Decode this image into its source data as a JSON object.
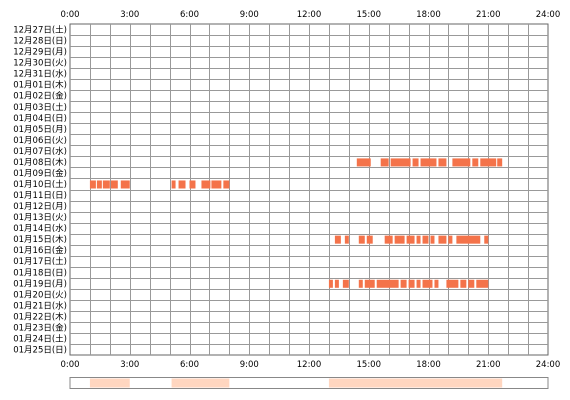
{
  "chart_data": {
    "type": "bar",
    "title": "",
    "xlabel": "",
    "ylabel": "",
    "x_range_hours": [
      0,
      24
    ],
    "x_tick_labels": [
      "0:00",
      "3:00",
      "6:00",
      "9:00",
      "12:00",
      "15:00",
      "18:00",
      "21:00",
      "24:00"
    ],
    "categories": [
      "12月27日(土)",
      "12月28日(日)",
      "12月29日(月)",
      "12月30日(火)",
      "12月31日(水)",
      "01月01日(木)",
      "01月02日(金)",
      "01月03日(土)",
      "01月04日(日)",
      "01月05日(月)",
      "01月06日(火)",
      "01月07日(水)",
      "01月08日(木)",
      "01月09日(金)",
      "01月10日(土)",
      "01月11日(日)",
      "01月12日(月)",
      "01月13日(火)",
      "01月14日(水)",
      "01月15日(木)",
      "01月16日(金)",
      "01月17日(土)",
      "01月18日(日)",
      "01月19日(月)",
      "01月20日(火)",
      "01月21日(水)",
      "01月22日(木)",
      "01月23日(金)",
      "01月24日(土)",
      "01月25日(日)"
    ],
    "activity": [
      {
        "day": "01月08日(木)",
        "intervals": [
          [
            14.4,
            15.1
          ],
          [
            15.6,
            16.0
          ],
          [
            16.1,
            17.1
          ],
          [
            17.2,
            17.5
          ],
          [
            17.6,
            18.4
          ],
          [
            18.5,
            18.9
          ],
          [
            19.2,
            20.1
          ],
          [
            20.2,
            20.5
          ],
          [
            20.6,
            21.4
          ],
          [
            21.45,
            21.7
          ]
        ]
      },
      {
        "day": "01月10日(土)",
        "intervals": [
          [
            1.0,
            1.3
          ],
          [
            1.35,
            1.6
          ],
          [
            1.65,
            2.0
          ],
          [
            2.05,
            2.4
          ],
          [
            2.55,
            3.0
          ],
          [
            5.1,
            5.3
          ],
          [
            5.45,
            5.8
          ],
          [
            6.0,
            6.3
          ],
          [
            6.6,
            7.05
          ],
          [
            7.1,
            7.6
          ],
          [
            7.7,
            8.0
          ]
        ]
      },
      {
        "day": "01月15日(木)",
        "intervals": [
          [
            13.3,
            13.6
          ],
          [
            13.8,
            14.0
          ],
          [
            14.5,
            14.8
          ],
          [
            14.9,
            15.2
          ],
          [
            15.8,
            16.2
          ],
          [
            16.3,
            16.8
          ],
          [
            16.9,
            17.3
          ],
          [
            17.4,
            17.6
          ],
          [
            17.7,
            18.0
          ],
          [
            18.1,
            18.3
          ],
          [
            18.5,
            18.9
          ],
          [
            19.0,
            19.2
          ],
          [
            19.4,
            20.6
          ],
          [
            20.8,
            21.0
          ]
        ]
      },
      {
        "day": "01月19日(月)",
        "intervals": [
          [
            13.0,
            13.2
          ],
          [
            13.3,
            13.5
          ],
          [
            13.7,
            14.0
          ],
          [
            14.5,
            14.7
          ],
          [
            14.8,
            15.3
          ],
          [
            15.4,
            16.5
          ],
          [
            16.6,
            16.9
          ],
          [
            17.0,
            17.3
          ],
          [
            17.4,
            17.6
          ],
          [
            17.7,
            18.2
          ],
          [
            18.3,
            18.5
          ],
          [
            18.9,
            19.5
          ],
          [
            19.6,
            19.9
          ],
          [
            20.0,
            20.3
          ],
          [
            20.4,
            21.0
          ]
        ]
      }
    ],
    "summary_bar": {
      "type": "heatmap",
      "color": "#ffd6c0",
      "segments_hours": [
        [
          1.0,
          3.0
        ],
        [
          5.1,
          8.0
        ],
        [
          13.0,
          21.7
        ]
      ]
    },
    "colors": {
      "bar": "#f4734a",
      "grid": "#999999",
      "frame": "#666666",
      "background": "#ffffff",
      "summary_border": "#888888"
    },
    "grid": true,
    "legend": "none"
  }
}
